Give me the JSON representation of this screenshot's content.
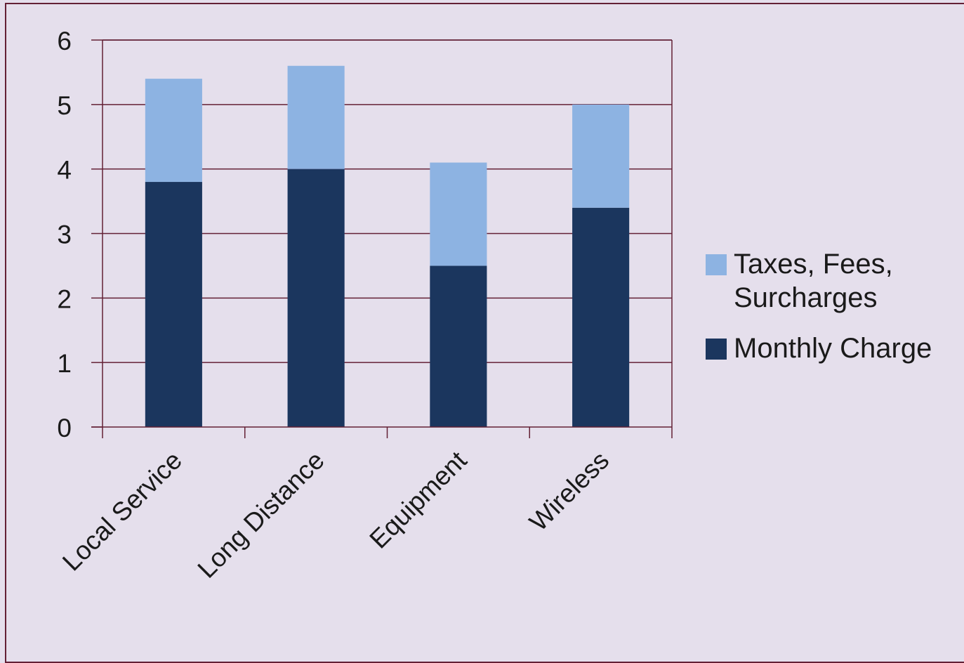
{
  "chart_data": {
    "type": "bar",
    "stacked": true,
    "categories": [
      "Local Service",
      "Long Distance",
      "Equipment",
      "Wireless"
    ],
    "series": [
      {
        "name": "Monthly Charge",
        "values": [
          3.8,
          4.0,
          2.5,
          3.4
        ],
        "color": "#1b365e"
      },
      {
        "name": "Taxes, Fees, Surcharges",
        "values": [
          1.6,
          1.6,
          1.6,
          1.6
        ],
        "color": "#8db3e2"
      }
    ],
    "ylim": [
      0,
      6
    ],
    "yticks": [
      "0",
      "1",
      "2",
      "3",
      "4",
      "5",
      "6"
    ],
    "grid": true,
    "legend_position": "right",
    "colors": {
      "background": "#e5dfec",
      "axis": "#632035",
      "text": "#1a1a1a"
    }
  },
  "legend": {
    "taxes_line1": "Taxes, Fees,",
    "taxes_line2": "Surcharges",
    "monthly": "Monthly Charge"
  }
}
